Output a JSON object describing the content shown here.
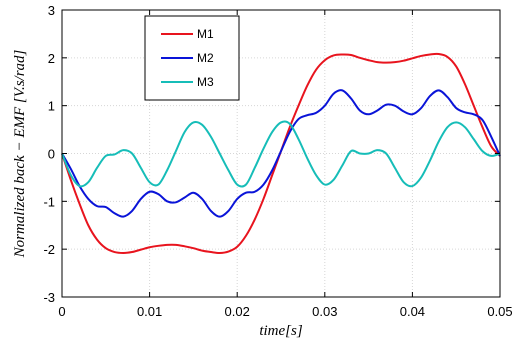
{
  "chart_data": {
    "type": "line",
    "title": "",
    "xlabel": "time[s]",
    "ylabel": "Normalized back − EMF [V.s/rad]",
    "xlim": [
      0,
      0.05
    ],
    "ylim": [
      -3,
      3
    ],
    "xticks": [
      "0",
      "0.01",
      "0.02",
      "0.03",
      "0.04",
      "0.05"
    ],
    "yticks": [
      "3",
      "2",
      "1",
      "0",
      "-1",
      "-2",
      "-3"
    ],
    "grid": true,
    "legend_position": "top-left",
    "series": [
      {
        "name": "M1",
        "color": "#e8141e",
        "x": [
          0,
          0.001,
          0.002,
          0.003,
          0.004,
          0.005,
          0.006,
          0.007,
          0.008,
          0.009,
          0.01,
          0.011,
          0.012,
          0.013,
          0.014,
          0.015,
          0.016,
          0.017,
          0.018,
          0.019,
          0.02,
          0.021,
          0.022,
          0.023,
          0.024,
          0.025,
          0.026,
          0.027,
          0.028,
          0.029,
          0.03,
          0.031,
          0.032,
          0.033,
          0.034,
          0.035,
          0.036,
          0.037,
          0.038,
          0.039,
          0.04,
          0.041,
          0.042,
          0.043,
          0.044,
          0.045,
          0.046,
          0.047,
          0.048,
          0.049,
          0.05
        ],
        "y": [
          0,
          -0.55,
          -1.05,
          -1.5,
          -1.8,
          -1.98,
          -2.06,
          -2.08,
          -2.06,
          -2.01,
          -1.96,
          -1.93,
          -1.91,
          -1.91,
          -1.94,
          -1.98,
          -2.03,
          -2.06,
          -2.08,
          -2.05,
          -1.95,
          -1.72,
          -1.38,
          -0.95,
          -0.45,
          0.05,
          0.55,
          1.0,
          1.42,
          1.75,
          1.95,
          2.05,
          2.07,
          2.06,
          2.0,
          1.95,
          1.91,
          1.9,
          1.91,
          1.94,
          1.99,
          2.04,
          2.07,
          2.08,
          2.02,
          1.82,
          1.45,
          1.0,
          0.55,
          0.15,
          -0.05
        ]
      },
      {
        "name": "M2",
        "color": "#0a14d8",
        "x": [
          0,
          0.001,
          0.002,
          0.003,
          0.004,
          0.005,
          0.006,
          0.007,
          0.008,
          0.009,
          0.01,
          0.011,
          0.012,
          0.013,
          0.014,
          0.015,
          0.016,
          0.017,
          0.018,
          0.019,
          0.02,
          0.021,
          0.022,
          0.023,
          0.024,
          0.025,
          0.026,
          0.027,
          0.028,
          0.029,
          0.03,
          0.031,
          0.032,
          0.033,
          0.034,
          0.035,
          0.036,
          0.037,
          0.038,
          0.039,
          0.04,
          0.041,
          0.042,
          0.043,
          0.044,
          0.045,
          0.046,
          0.047,
          0.048,
          0.049,
          0.05
        ],
        "y": [
          0,
          -0.32,
          -0.68,
          -0.95,
          -1.1,
          -1.12,
          -1.25,
          -1.32,
          -1.2,
          -0.95,
          -0.8,
          -0.85,
          -1.0,
          -1.02,
          -0.92,
          -0.82,
          -0.95,
          -1.2,
          -1.32,
          -1.2,
          -0.95,
          -0.82,
          -0.8,
          -0.65,
          -0.35,
          0.05,
          0.45,
          0.72,
          0.8,
          0.85,
          1.0,
          1.25,
          1.32,
          1.15,
          0.9,
          0.82,
          0.9,
          1.02,
          1.0,
          0.88,
          0.82,
          0.95,
          1.2,
          1.32,
          1.18,
          0.95,
          0.86,
          0.82,
          0.7,
          0.35,
          -0.05
        ]
      },
      {
        "name": "M3",
        "color": "#16bdb8",
        "x": [
          0,
          0.001,
          0.002,
          0.003,
          0.004,
          0.005,
          0.006,
          0.007,
          0.008,
          0.009,
          0.01,
          0.011,
          0.012,
          0.013,
          0.014,
          0.015,
          0.016,
          0.017,
          0.018,
          0.019,
          0.02,
          0.021,
          0.022,
          0.023,
          0.024,
          0.025,
          0.026,
          0.027,
          0.028,
          0.029,
          0.03,
          0.031,
          0.032,
          0.033,
          0.034,
          0.035,
          0.036,
          0.037,
          0.038,
          0.039,
          0.04,
          0.041,
          0.042,
          0.043,
          0.044,
          0.045,
          0.046,
          0.047,
          0.048,
          0.049,
          0.05
        ],
        "y": [
          0,
          -0.45,
          -0.68,
          -0.6,
          -0.3,
          -0.05,
          -0.02,
          0.07,
          0.0,
          -0.3,
          -0.6,
          -0.65,
          -0.35,
          0.05,
          0.45,
          0.65,
          0.6,
          0.35,
          0.0,
          -0.35,
          -0.65,
          -0.65,
          -0.3,
          0.1,
          0.45,
          0.65,
          0.62,
          0.3,
          -0.1,
          -0.45,
          -0.65,
          -0.55,
          -0.25,
          0.05,
          0.0,
          0.0,
          0.07,
          0.0,
          -0.3,
          -0.6,
          -0.68,
          -0.5,
          -0.15,
          0.25,
          0.55,
          0.65,
          0.55,
          0.3,
          0.05,
          -0.05,
          0.0
        ]
      }
    ]
  }
}
